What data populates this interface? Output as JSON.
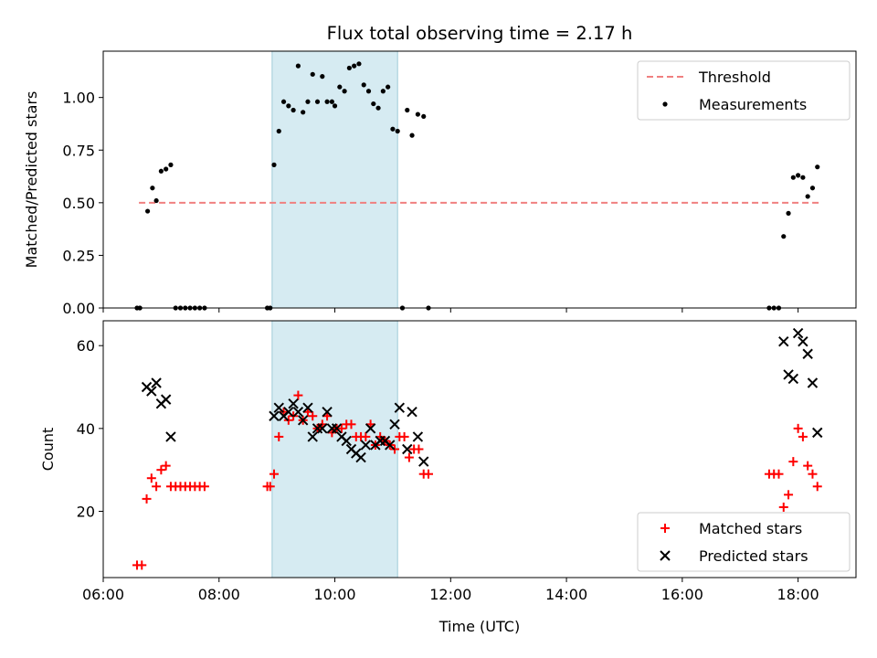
{
  "chart_data": {
    "title": "Flux total observing time = 2.17 h",
    "xlabel": "Time (UTC)",
    "xlim": [
      "06:00",
      "19:00"
    ],
    "xticks": [
      "06:00",
      "08:00",
      "10:00",
      "12:00",
      "14:00",
      "16:00",
      "18:00"
    ],
    "highlight_span": {
      "start": "08:55",
      "end": "11:05",
      "color": "#add8e6"
    },
    "panels": [
      {
        "type": "scatter",
        "ylabel": "Matched/Predicted stars",
        "ylim": [
          0,
          1.22
        ],
        "yticks": [
          "0.00",
          "0.25",
          "0.50",
          "0.75",
          "1.00"
        ],
        "legend_position": "upper right",
        "series": [
          {
            "name": "Threshold",
            "kind": "dashed-line",
            "color": "#f08080",
            "points": [
              [
                "06:37",
                0.5
              ],
              [
                "18:22",
                0.5
              ]
            ]
          },
          {
            "name": "Measurements",
            "kind": "dot",
            "color": "#000000",
            "points": [
              [
                "06:35",
                0
              ],
              [
                "06:38",
                0
              ],
              [
                "06:46",
                0.46
              ],
              [
                "06:51",
                0.57
              ],
              [
                "06:55",
                0.51
              ],
              [
                "07:00",
                0.65
              ],
              [
                "07:05",
                0.66
              ],
              [
                "07:10",
                0.68
              ],
              [
                "07:15",
                0
              ],
              [
                "07:20",
                0
              ],
              [
                "07:25",
                0
              ],
              [
                "07:30",
                0
              ],
              [
                "07:35",
                0
              ],
              [
                "07:40",
                0
              ],
              [
                "07:45",
                0
              ],
              [
                "08:50",
                0
              ],
              [
                "08:53",
                0
              ],
              [
                "08:57",
                0.68
              ],
              [
                "09:02",
                0.84
              ],
              [
                "09:07",
                0.98
              ],
              [
                "09:12",
                0.96
              ],
              [
                "09:17",
                0.94
              ],
              [
                "09:22",
                1.15
              ],
              [
                "09:27",
                0.93
              ],
              [
                "09:32",
                0.98
              ],
              [
                "09:37",
                1.11
              ],
              [
                "09:42",
                0.98
              ],
              [
                "09:47",
                1.1
              ],
              [
                "09:52",
                0.98
              ],
              [
                "09:57",
                0.98
              ],
              [
                "10:00",
                0.96
              ],
              [
                "10:05",
                1.05
              ],
              [
                "10:10",
                1.03
              ],
              [
                "10:15",
                1.14
              ],
              [
                "10:20",
                1.15
              ],
              [
                "10:25",
                1.16
              ],
              [
                "10:30",
                1.06
              ],
              [
                "10:35",
                1.03
              ],
              [
                "10:40",
                0.97
              ],
              [
                "10:45",
                0.95
              ],
              [
                "10:50",
                1.03
              ],
              [
                "10:55",
                1.05
              ],
              [
                "11:00",
                0.85
              ],
              [
                "11:05",
                0.84
              ],
              [
                "11:10",
                0
              ],
              [
                "11:15",
                0.94
              ],
              [
                "11:20",
                0.82
              ],
              [
                "11:26",
                0.92
              ],
              [
                "11:32",
                0.91
              ],
              [
                "11:37",
                0
              ],
              [
                "17:30",
                0
              ],
              [
                "17:35",
                0
              ],
              [
                "17:40",
                0
              ],
              [
                "17:45",
                0.34
              ],
              [
                "17:50",
                0.45
              ],
              [
                "17:55",
                0.62
              ],
              [
                "18:00",
                0.63
              ],
              [
                "18:05",
                0.62
              ],
              [
                "18:10",
                0.53
              ],
              [
                "18:15",
                0.57
              ],
              [
                "18:20",
                0.67
              ]
            ]
          }
        ]
      },
      {
        "type": "scatter",
        "ylabel": "Count",
        "ylim": [
          4,
          66
        ],
        "yticks": [
          "20",
          "40",
          "60"
        ],
        "legend_position": "lower right",
        "series": [
          {
            "name": "Matched stars",
            "kind": "plus",
            "color": "#ff0000",
            "points": [
              [
                "06:35",
                7
              ],
              [
                "06:40",
                7
              ],
              [
                "06:45",
                23
              ],
              [
                "06:50",
                28
              ],
              [
                "06:55",
                26
              ],
              [
                "07:00",
                30
              ],
              [
                "07:05",
                31
              ],
              [
                "07:10",
                26
              ],
              [
                "07:15",
                26
              ],
              [
                "07:20",
                26
              ],
              [
                "07:25",
                26
              ],
              [
                "07:30",
                26
              ],
              [
                "07:35",
                26
              ],
              [
                "07:40",
                26
              ],
              [
                "07:45",
                26
              ],
              [
                "08:50",
                26
              ],
              [
                "08:53",
                26
              ],
              [
                "08:57",
                29
              ],
              [
                "09:02",
                38
              ],
              [
                "09:07",
                44
              ],
              [
                "09:12",
                42
              ],
              [
                "09:17",
                43
              ],
              [
                "09:22",
                48
              ],
              [
                "09:27",
                42
              ],
              [
                "09:32",
                44
              ],
              [
                "09:37",
                43
              ],
              [
                "09:42",
                40
              ],
              [
                "09:47",
                41
              ],
              [
                "09:52",
                43
              ],
              [
                "09:57",
                39
              ],
              [
                "10:02",
                40
              ],
              [
                "10:07",
                40
              ],
              [
                "10:12",
                41
              ],
              [
                "10:17",
                41
              ],
              [
                "10:22",
                38
              ],
              [
                "10:27",
                38
              ],
              [
                "10:32",
                38
              ],
              [
                "10:37",
                41
              ],
              [
                "10:42",
                36
              ],
              [
                "10:47",
                38
              ],
              [
                "10:52",
                37
              ],
              [
                "10:57",
                36
              ],
              [
                "11:02",
                35
              ],
              [
                "11:07",
                38
              ],
              [
                "11:12",
                38
              ],
              [
                "11:17",
                33
              ],
              [
                "11:22",
                35
              ],
              [
                "11:27",
                35
              ],
              [
                "11:32",
                29
              ],
              [
                "11:37",
                29
              ],
              [
                "17:30",
                29
              ],
              [
                "17:35",
                29
              ],
              [
                "17:40",
                29
              ],
              [
                "17:45",
                21
              ],
              [
                "17:50",
                24
              ],
              [
                "17:55",
                32
              ],
              [
                "18:00",
                40
              ],
              [
                "18:05",
                38
              ],
              [
                "18:10",
                31
              ],
              [
                "18:15",
                29
              ],
              [
                "18:20",
                26
              ]
            ]
          },
          {
            "name": "Predicted stars",
            "kind": "cross",
            "color": "#000000",
            "points": [
              [
                "06:45",
                50
              ],
              [
                "06:50",
                49
              ],
              [
                "06:55",
                51
              ],
              [
                "07:00",
                46
              ],
              [
                "07:05",
                47
              ],
              [
                "07:10",
                38
              ],
              [
                "08:57",
                43
              ],
              [
                "09:02",
                45
              ],
              [
                "09:07",
                43
              ],
              [
                "09:12",
                44
              ],
              [
                "09:17",
                46
              ],
              [
                "09:22",
                44
              ],
              [
                "09:27",
                42
              ],
              [
                "09:32",
                45
              ],
              [
                "09:37",
                38
              ],
              [
                "09:42",
                40
              ],
              [
                "09:47",
                40
              ],
              [
                "09:52",
                44
              ],
              [
                "09:57",
                40
              ],
              [
                "10:02",
                40
              ],
              [
                "10:07",
                38
              ],
              [
                "10:12",
                37
              ],
              [
                "10:17",
                35
              ],
              [
                "10:22",
                34
              ],
              [
                "10:27",
                33
              ],
              [
                "10:32",
                36
              ],
              [
                "10:37",
                40
              ],
              [
                "10:42",
                36
              ],
              [
                "10:47",
                37
              ],
              [
                "10:52",
                37
              ],
              [
                "10:57",
                36
              ],
              [
                "11:02",
                41
              ],
              [
                "11:07",
                45
              ],
              [
                "11:15",
                35
              ],
              [
                "11:20",
                44
              ],
              [
                "11:26",
                38
              ],
              [
                "11:32",
                32
              ],
              [
                "17:45",
                61
              ],
              [
                "17:50",
                53
              ],
              [
                "17:55",
                52
              ],
              [
                "18:00",
                63
              ],
              [
                "18:05",
                61
              ],
              [
                "18:10",
                58
              ],
              [
                "18:15",
                51
              ],
              [
                "18:20",
                39
              ]
            ]
          }
        ]
      }
    ]
  }
}
